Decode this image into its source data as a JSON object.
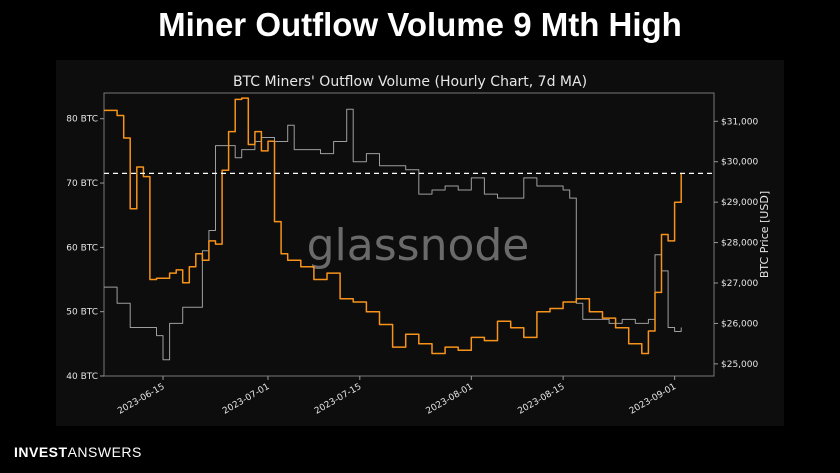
{
  "headline": "Miner Outflow Volume 9 Mth High",
  "brand": {
    "bold": "INVEST",
    "regular": "ANSWERS"
  },
  "watermark": "glassnode",
  "colors": {
    "outflow": "#f7931a",
    "price": "#9e9e9e",
    "reference_line": "#ffffff",
    "background": "#0d0d0d"
  },
  "chart_data": {
    "type": "line",
    "title": "BTC Miners' Outflow Volume (Hourly Chart, 7d MA)",
    "y_left": {
      "ticks": [
        "80 BTC",
        "70 BTC",
        "60 BTC",
        "50 BTC",
        "40 BTC"
      ],
      "ylim": [
        40,
        84
      ]
    },
    "y_right": {
      "label": "BTC Price [USD]",
      "ticks": [
        "$31,000",
        "$30,000",
        "$29,000",
        "$28,000",
        "$27,000",
        "$26,000",
        "$25,000"
      ],
      "ylim": [
        24700,
        31700
      ]
    },
    "x_ticks": [
      "2023-06-15",
      "2023-07-01",
      "2023-07-15",
      "2023-08-01",
      "2023-08-15",
      "2023-09-01"
    ],
    "xlim": [
      "2023-06-06",
      "2023-09-07"
    ],
    "reference_line": {
      "value": 71.5,
      "style": "dashed"
    },
    "series": [
      {
        "axis": "left",
        "color": "#f7931a",
        "points": [
          [
            "2023-06-06",
            81.3
          ],
          [
            "2023-06-08",
            80.5
          ],
          [
            "2023-06-09",
            77.0
          ],
          [
            "2023-06-10",
            66.0
          ],
          [
            "2023-06-11",
            72.5
          ],
          [
            "2023-06-12",
            71.0
          ],
          [
            "2023-06-13",
            55.0
          ],
          [
            "2023-06-14",
            55.2
          ],
          [
            "2023-06-16",
            56.0
          ],
          [
            "2023-06-17",
            56.5
          ],
          [
            "2023-06-18",
            54.5
          ],
          [
            "2023-06-19",
            57.0
          ],
          [
            "2023-06-20",
            59.0
          ],
          [
            "2023-06-21",
            58.0
          ],
          [
            "2023-06-22",
            61.0
          ],
          [
            "2023-06-23",
            60.5
          ],
          [
            "2023-06-24",
            72.0
          ],
          [
            "2023-06-25",
            78.0
          ],
          [
            "2023-06-26",
            83.0
          ],
          [
            "2023-06-27",
            83.2
          ],
          [
            "2023-06-28",
            76.0
          ],
          [
            "2023-06-29",
            78.0
          ],
          [
            "2023-06-30",
            75.0
          ],
          [
            "2023-07-01",
            76.5
          ],
          [
            "2023-07-02",
            64.0
          ],
          [
            "2023-07-03",
            59.0
          ],
          [
            "2023-07-04",
            58.0
          ],
          [
            "2023-07-06",
            57.0
          ],
          [
            "2023-07-08",
            55.0
          ],
          [
            "2023-07-10",
            56.0
          ],
          [
            "2023-07-12",
            52.0
          ],
          [
            "2023-07-14",
            51.5
          ],
          [
            "2023-07-16",
            50.0
          ],
          [
            "2023-07-18",
            48.0
          ],
          [
            "2023-07-20",
            44.5
          ],
          [
            "2023-07-22",
            46.5
          ],
          [
            "2023-07-24",
            45.0
          ],
          [
            "2023-07-26",
            43.5
          ],
          [
            "2023-07-28",
            44.5
          ],
          [
            "2023-07-30",
            44.0
          ],
          [
            "2023-08-01",
            46.0
          ],
          [
            "2023-08-03",
            45.5
          ],
          [
            "2023-08-05",
            48.5
          ],
          [
            "2023-08-07",
            47.5
          ],
          [
            "2023-08-09",
            46.0
          ],
          [
            "2023-08-11",
            50.0
          ],
          [
            "2023-08-13",
            50.5
          ],
          [
            "2023-08-15",
            51.5
          ],
          [
            "2023-08-17",
            52.0
          ],
          [
            "2023-08-19",
            50.0
          ],
          [
            "2023-08-21",
            49.0
          ],
          [
            "2023-08-23",
            47.5
          ],
          [
            "2023-08-25",
            45.0
          ],
          [
            "2023-08-27",
            43.5
          ],
          [
            "2023-08-28",
            47.0
          ],
          [
            "2023-08-29",
            53.0
          ],
          [
            "2023-08-30",
            62.0
          ],
          [
            "2023-08-31",
            61.0
          ],
          [
            "2023-09-01",
            67.0
          ],
          [
            "2023-09-02",
            71.5
          ]
        ]
      },
      {
        "axis": "right",
        "color": "#9e9e9e",
        "points": [
          [
            "2023-06-06",
            26900
          ],
          [
            "2023-06-08",
            26500
          ],
          [
            "2023-06-10",
            25900
          ],
          [
            "2023-06-12",
            25900
          ],
          [
            "2023-06-14",
            25700
          ],
          [
            "2023-06-15",
            25100
          ],
          [
            "2023-06-16",
            26000
          ],
          [
            "2023-06-18",
            26400
          ],
          [
            "2023-06-20",
            26400
          ],
          [
            "2023-06-21",
            27800
          ],
          [
            "2023-06-22",
            28300
          ],
          [
            "2023-06-23",
            30400
          ],
          [
            "2023-06-25",
            30400
          ],
          [
            "2023-06-26",
            30100
          ],
          [
            "2023-06-27",
            30300
          ],
          [
            "2023-06-29",
            30500
          ],
          [
            "2023-06-30",
            30600
          ],
          [
            "2023-07-02",
            30500
          ],
          [
            "2023-07-04",
            30900
          ],
          [
            "2023-07-05",
            30300
          ],
          [
            "2023-07-07",
            30300
          ],
          [
            "2023-07-09",
            30200
          ],
          [
            "2023-07-11",
            30500
          ],
          [
            "2023-07-13",
            31300
          ],
          [
            "2023-07-14",
            30000
          ],
          [
            "2023-07-16",
            30200
          ],
          [
            "2023-07-18",
            29900
          ],
          [
            "2023-07-20",
            29900
          ],
          [
            "2023-07-22",
            29800
          ],
          [
            "2023-07-24",
            29200
          ],
          [
            "2023-07-26",
            29300
          ],
          [
            "2023-07-28",
            29400
          ],
          [
            "2023-07-30",
            29300
          ],
          [
            "2023-08-01",
            29600
          ],
          [
            "2023-08-03",
            29200
          ],
          [
            "2023-08-05",
            29100
          ],
          [
            "2023-08-07",
            29100
          ],
          [
            "2023-08-09",
            29600
          ],
          [
            "2023-08-11",
            29400
          ],
          [
            "2023-08-13",
            29400
          ],
          [
            "2023-08-15",
            29300
          ],
          [
            "2023-08-16",
            29100
          ],
          [
            "2023-08-17",
            26500
          ],
          [
            "2023-08-18",
            26100
          ],
          [
            "2023-08-20",
            26100
          ],
          [
            "2023-08-22",
            26000
          ],
          [
            "2023-08-24",
            26100
          ],
          [
            "2023-08-26",
            26000
          ],
          [
            "2023-08-28",
            26100
          ],
          [
            "2023-08-29",
            27700
          ],
          [
            "2023-08-30",
            27300
          ],
          [
            "2023-08-31",
            25900
          ],
          [
            "2023-09-01",
            25800
          ],
          [
            "2023-09-02",
            25900
          ]
        ]
      }
    ]
  }
}
